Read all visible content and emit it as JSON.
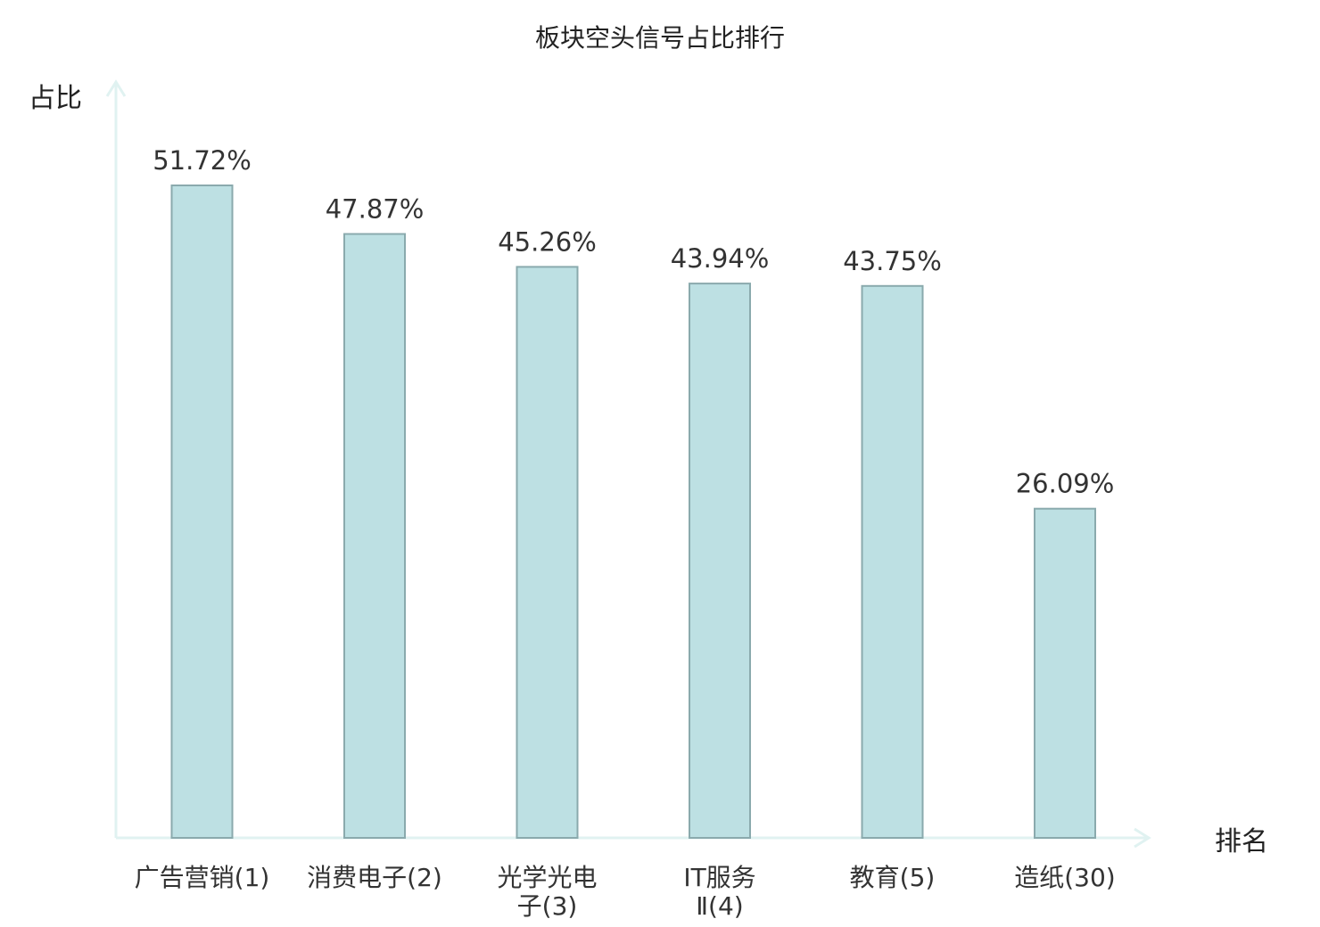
{
  "chart_data": {
    "type": "bar",
    "title": "板块空头信号占比排行",
    "ylabel": "占比",
    "xlabel": "排名",
    "ylim": [
      0,
      60
    ],
    "grid": false,
    "categories": [
      [
        "广告营销(1)"
      ],
      [
        "消费电子(2)"
      ],
      [
        "光学光电",
        "子(3)"
      ],
      [
        "IT服务",
        "Ⅱ(4)"
      ],
      [
        "教育(5)"
      ],
      [
        "造纸(30)"
      ]
    ],
    "values": [
      51.72,
      47.87,
      45.26,
      43.94,
      43.75,
      26.09
    ],
    "value_labels": [
      "51.72%",
      "47.87%",
      "45.26%",
      "43.94%",
      "43.75%",
      "26.09%"
    ],
    "highlight_index": 5
  },
  "colors": {
    "bar_fill": "#bde0e3",
    "bar_stroke": "#8aaaad",
    "axis": "#e0f2f1",
    "text": "#333333",
    "highlight_text": "#dd1111"
  }
}
